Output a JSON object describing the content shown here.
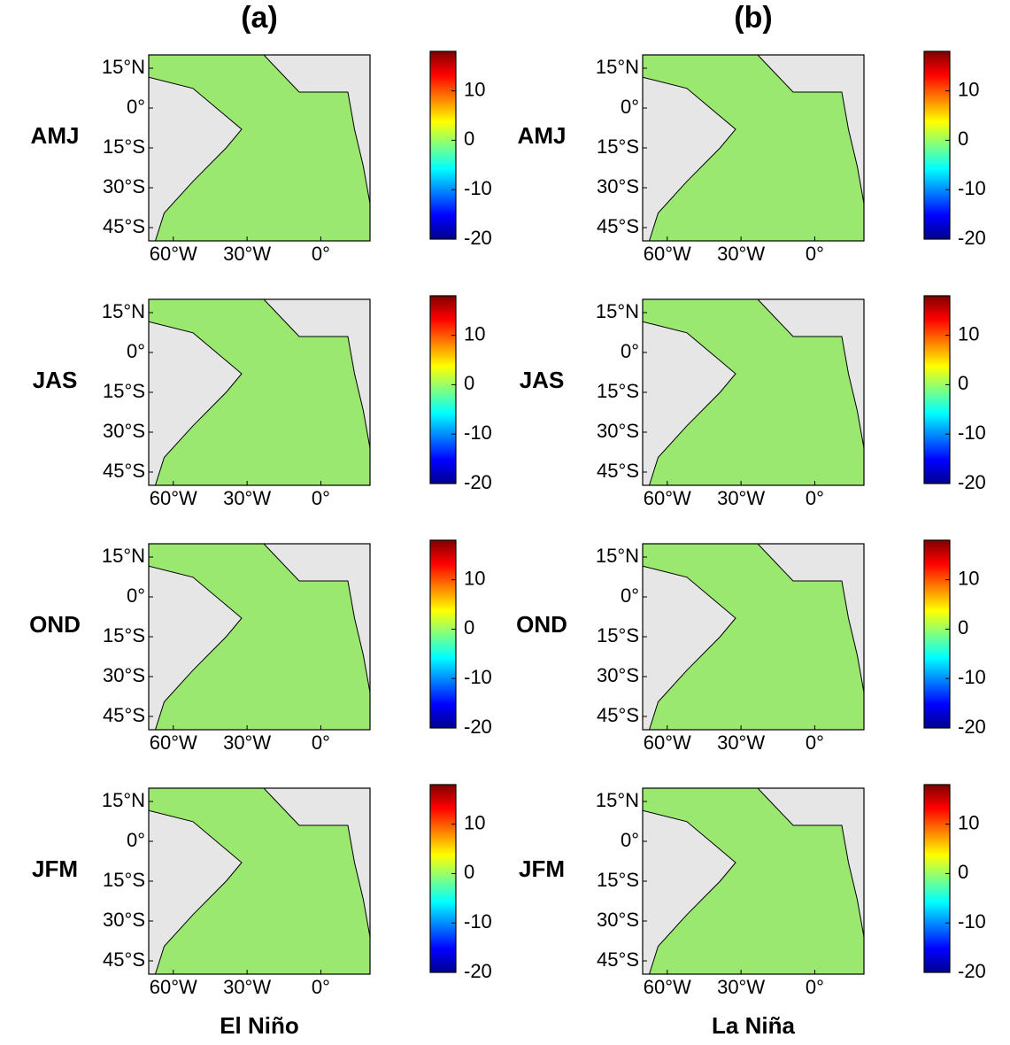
{
  "columns": [
    {
      "title": "(a)",
      "label": "El Niño"
    },
    {
      "title": "(b)",
      "label": "La Niña"
    }
  ],
  "rows": [
    "AMJ",
    "JAS",
    "OND",
    "JFM"
  ],
  "map_axes": {
    "xlim": [
      -70,
      20
    ],
    "ylim": [
      -50,
      20
    ],
    "xticks": [
      {
        "value": -60,
        "label": "60°W"
      },
      {
        "value": -30,
        "label": "30°W"
      },
      {
        "value": 0,
        "label": "0°"
      }
    ],
    "yticks": [
      {
        "value": 15,
        "label": "15°N"
      },
      {
        "value": 0,
        "label": "0°"
      },
      {
        "value": -15,
        "label": "15°S"
      },
      {
        "value": -30,
        "label": "30°S"
      },
      {
        "value": -45,
        "label": "45°S"
      }
    ]
  },
  "colorbar": {
    "clim": [
      -20,
      18
    ],
    "ticks": [
      -20,
      -10,
      0,
      10
    ]
  }
}
